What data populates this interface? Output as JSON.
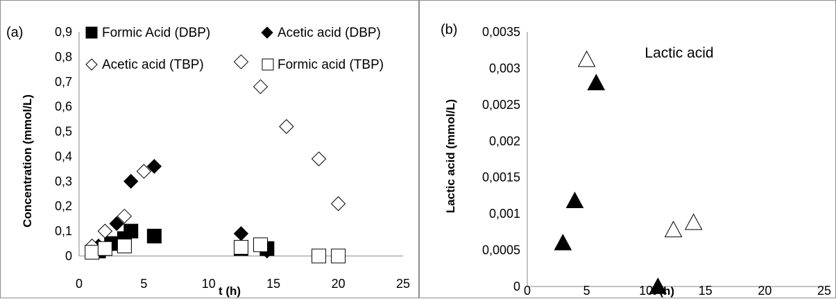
{
  "chart_data": [
    {
      "panel_label": "(a)",
      "type": "scatter",
      "title": "",
      "xlabel": "t (h)",
      "ylabel": "Concentration (mmol/L)",
      "xlim": [
        0,
        25
      ],
      "ylim": [
        0,
        0.9
      ],
      "xticks": [
        "0",
        "5",
        "10",
        "15",
        "20",
        "25"
      ],
      "yticks": [
        "0",
        "0,1",
        "0,2",
        "0,3",
        "0,4",
        "0,5",
        "0,6",
        "0,7",
        "0,8",
        "0,9"
      ],
      "grid": false,
      "legend_position": "top",
      "series": [
        {
          "name": "Formic Acid (DBP)",
          "marker": "square-filled",
          "color": "#000000",
          "x": [
            1.5,
            2.5,
            3.5,
            4.0,
            5.8,
            12.5,
            14.5
          ],
          "y": [
            0.02,
            0.05,
            0.07,
            0.1,
            0.08,
            0.03,
            0.03
          ]
        },
        {
          "name": "Acetic acid (DBP)",
          "marker": "diamond-filled",
          "color": "#000000",
          "x": [
            1.5,
            2.9,
            4.0,
            5.8,
            12.5,
            14.5
          ],
          "y": [
            0.04,
            0.13,
            0.3,
            0.36,
            0.09,
            0.02
          ]
        },
        {
          "name": "Acetic acid (TBP)",
          "marker": "diamond-open",
          "color": "#000000",
          "x": [
            1.0,
            2.0,
            3.5,
            5.0,
            12.5,
            14.0,
            16.0,
            18.5,
            20.0
          ],
          "y": [
            0.04,
            0.1,
            0.16,
            0.34,
            0.78,
            0.68,
            0.52,
            0.39,
            0.21
          ]
        },
        {
          "name": "Formic acid (TBP)",
          "marker": "square-open",
          "color": "#000000",
          "x": [
            1.0,
            2.0,
            3.5,
            12.5,
            14.0,
            18.5,
            20.0
          ],
          "y": [
            0.015,
            0.03,
            0.04,
            0.035,
            0.045,
            0.0,
            0.0
          ]
        }
      ]
    },
    {
      "panel_label": "(b)",
      "type": "scatter",
      "title": "",
      "annotation": "Lactic acid",
      "xlabel": "t (h)",
      "ylabel": "Lactic acid (mmol/L)",
      "xlim": [
        0,
        25
      ],
      "ylim": [
        0,
        0.0035
      ],
      "xticks": [
        "0",
        "5",
        "10",
        "15",
        "20",
        "25"
      ],
      "yticks": [
        "0",
        "0,0005",
        "0,001",
        "0,0015",
        "0,002",
        "0,0025",
        "0,003",
        "0,0035"
      ],
      "grid": false,
      "series": [
        {
          "name": "",
          "marker": "triangle-filled",
          "color": "#000000",
          "x": [
            3.0,
            4.0,
            5.8,
            11.0
          ],
          "y": [
            0.0006,
            0.00118,
            0.0028,
            0.0
          ]
        },
        {
          "name": "",
          "marker": "triangle-open",
          "color": "#000000",
          "x": [
            5.0,
            12.3,
            14.0
          ],
          "y": [
            0.00312,
            0.00078,
            0.00088
          ]
        }
      ]
    }
  ]
}
